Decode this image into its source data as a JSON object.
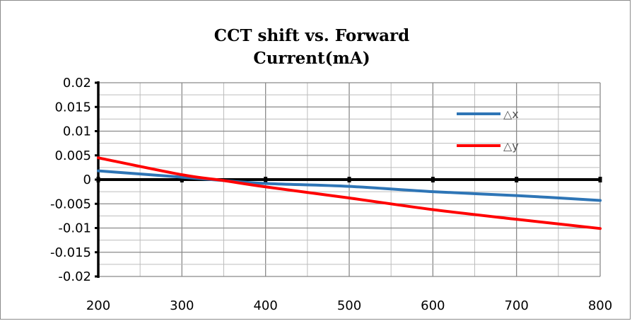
{
  "chart_data": {
    "type": "line",
    "title": "CCT shift vs. Forward\nCurrent(mA)",
    "xlabel": "",
    "ylabel": "",
    "xlim": [
      200,
      800
    ],
    "ylim": [
      -0.02,
      0.02
    ],
    "x_ticks": [
      200,
      300,
      400,
      500,
      600,
      700,
      800
    ],
    "x_tick_labels": [
      "200",
      "300",
      "400",
      "500",
      "600",
      "700",
      "800"
    ],
    "y_ticks": [
      0.02,
      0.015,
      0.01,
      0.005,
      0,
      -0.005,
      -0.01,
      -0.015,
      -0.02
    ],
    "y_tick_labels": [
      "0.02",
      "0.015",
      "0.01",
      "0.005",
      "0",
      "-0.005",
      "-0.01",
      "-0.015",
      "-0.02"
    ],
    "grid": true,
    "legend_position": "right",
    "series": [
      {
        "name": "△x",
        "color": "#2e75b6",
        "x": [
          200,
          300,
          350,
          400,
          500,
          600,
          700,
          800
        ],
        "y": [
          0.0018,
          0.0005,
          -0.0002,
          -0.0008,
          -0.0014,
          -0.0025,
          -0.0033,
          -0.0043
        ]
      },
      {
        "name": "△y",
        "color": "#ff0000",
        "x": [
          200,
          300,
          350,
          400,
          500,
          600,
          700,
          800
        ],
        "y": [
          0.0045,
          0.001,
          -0.0002,
          -0.0015,
          -0.0038,
          -0.0062,
          -0.0082,
          -0.0101
        ]
      }
    ]
  }
}
